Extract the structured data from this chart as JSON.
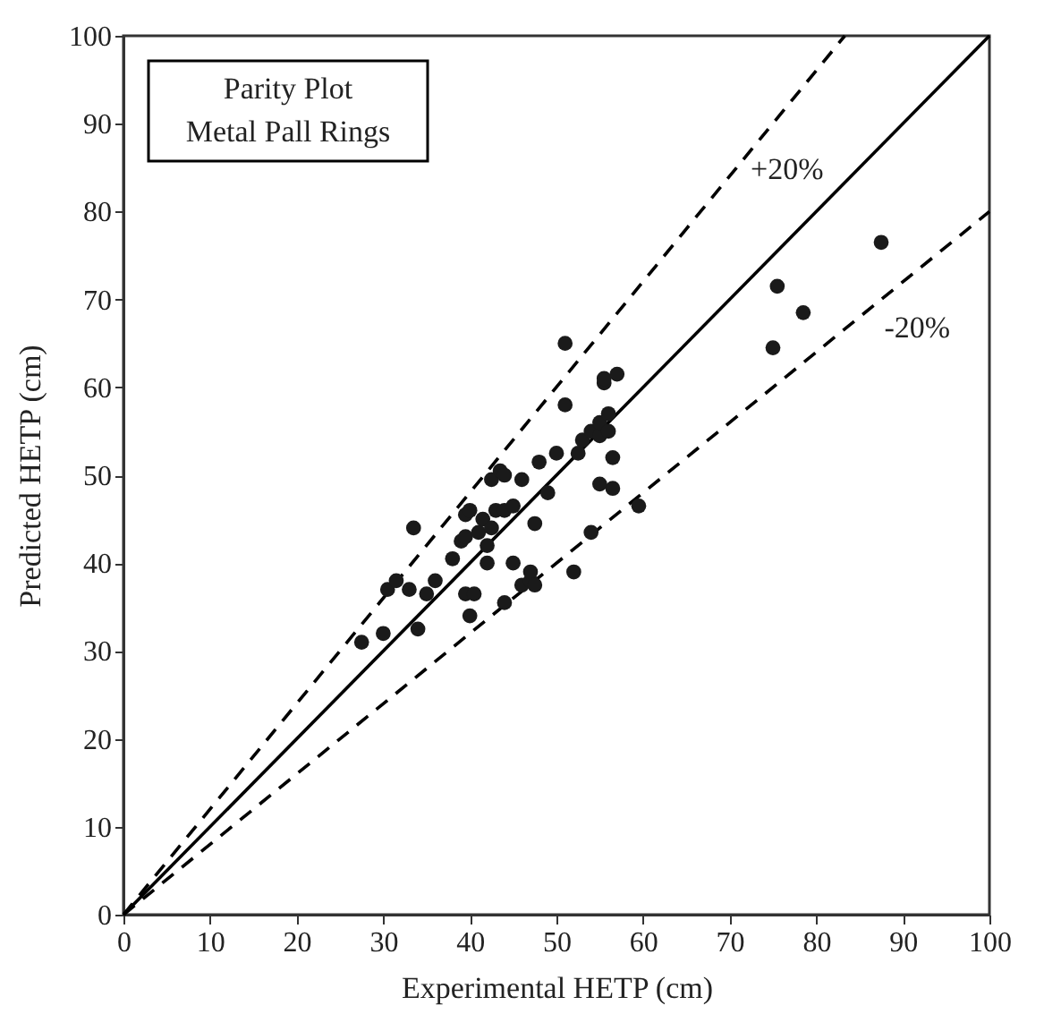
{
  "chart_data": {
    "type": "scatter",
    "xlabel": "Experimental HETP (cm)",
    "ylabel": "Predicted HETP (cm)",
    "xlim": [
      0,
      100
    ],
    "ylim": [
      0,
      100
    ],
    "xticks": [
      0,
      10,
      20,
      30,
      40,
      50,
      60,
      70,
      80,
      90,
      100
    ],
    "yticks": [
      0,
      10,
      20,
      30,
      40,
      50,
      60,
      70,
      80,
      90,
      100
    ],
    "grid": false,
    "annotations": [
      "Parity Plot\nMetal Pall Rings"
    ],
    "series": [
      {
        "type": "line",
        "color": "#000000",
        "line_style": "solid",
        "x": [
          0,
          100
        ],
        "values": [
          0,
          100
        ]
      },
      {
        "type": "line",
        "name": "+20%",
        "color": "#000000",
        "line_style": "dashed",
        "x": [
          0,
          83.3
        ],
        "values": [
          0,
          100
        ]
      },
      {
        "type": "line",
        "name": "-20%",
        "color": "#000000",
        "line_style": "dashed",
        "x": [
          0,
          100
        ],
        "values": [
          0,
          80
        ]
      },
      {
        "color": "#1a1a1a",
        "marker": "circle",
        "x": [
          27.5,
          30,
          30.5,
          31.5,
          33,
          33.5,
          34,
          35,
          36,
          38,
          39,
          39.5,
          39.5,
          40,
          39.5,
          40,
          40.5,
          41,
          41.5,
          42,
          42,
          42.5,
          42.5,
          43,
          43.5,
          44,
          44,
          44,
          45,
          45,
          46,
          46,
          47,
          47,
          47.5,
          47.5,
          48,
          49,
          50,
          51,
          51,
          52,
          52.5,
          53,
          54,
          54,
          55,
          55,
          55,
          55.5,
          55.5,
          56,
          56,
          56.5,
          56.5,
          57,
          59.5,
          75,
          75.5,
          78.5,
          87.5
        ],
        "values": [
          31,
          32,
          37,
          38,
          37,
          44,
          32.5,
          36.5,
          38,
          40.5,
          42.5,
          43,
          45.5,
          46,
          36.5,
          34,
          36.5,
          43.5,
          45,
          40,
          42,
          44,
          49.5,
          46,
          50.5,
          50,
          46,
          35.5,
          40,
          46.5,
          49.5,
          37.5,
          38,
          39,
          44.5,
          37.5,
          51.5,
          48,
          52.5,
          58,
          65,
          39,
          52.5,
          54,
          43.5,
          55,
          54.5,
          56,
          49,
          60.5,
          61,
          57,
          55,
          48.5,
          52,
          61.5,
          46.5,
          64.5,
          71.5,
          68.5,
          76.5
        ]
      }
    ]
  }
}
